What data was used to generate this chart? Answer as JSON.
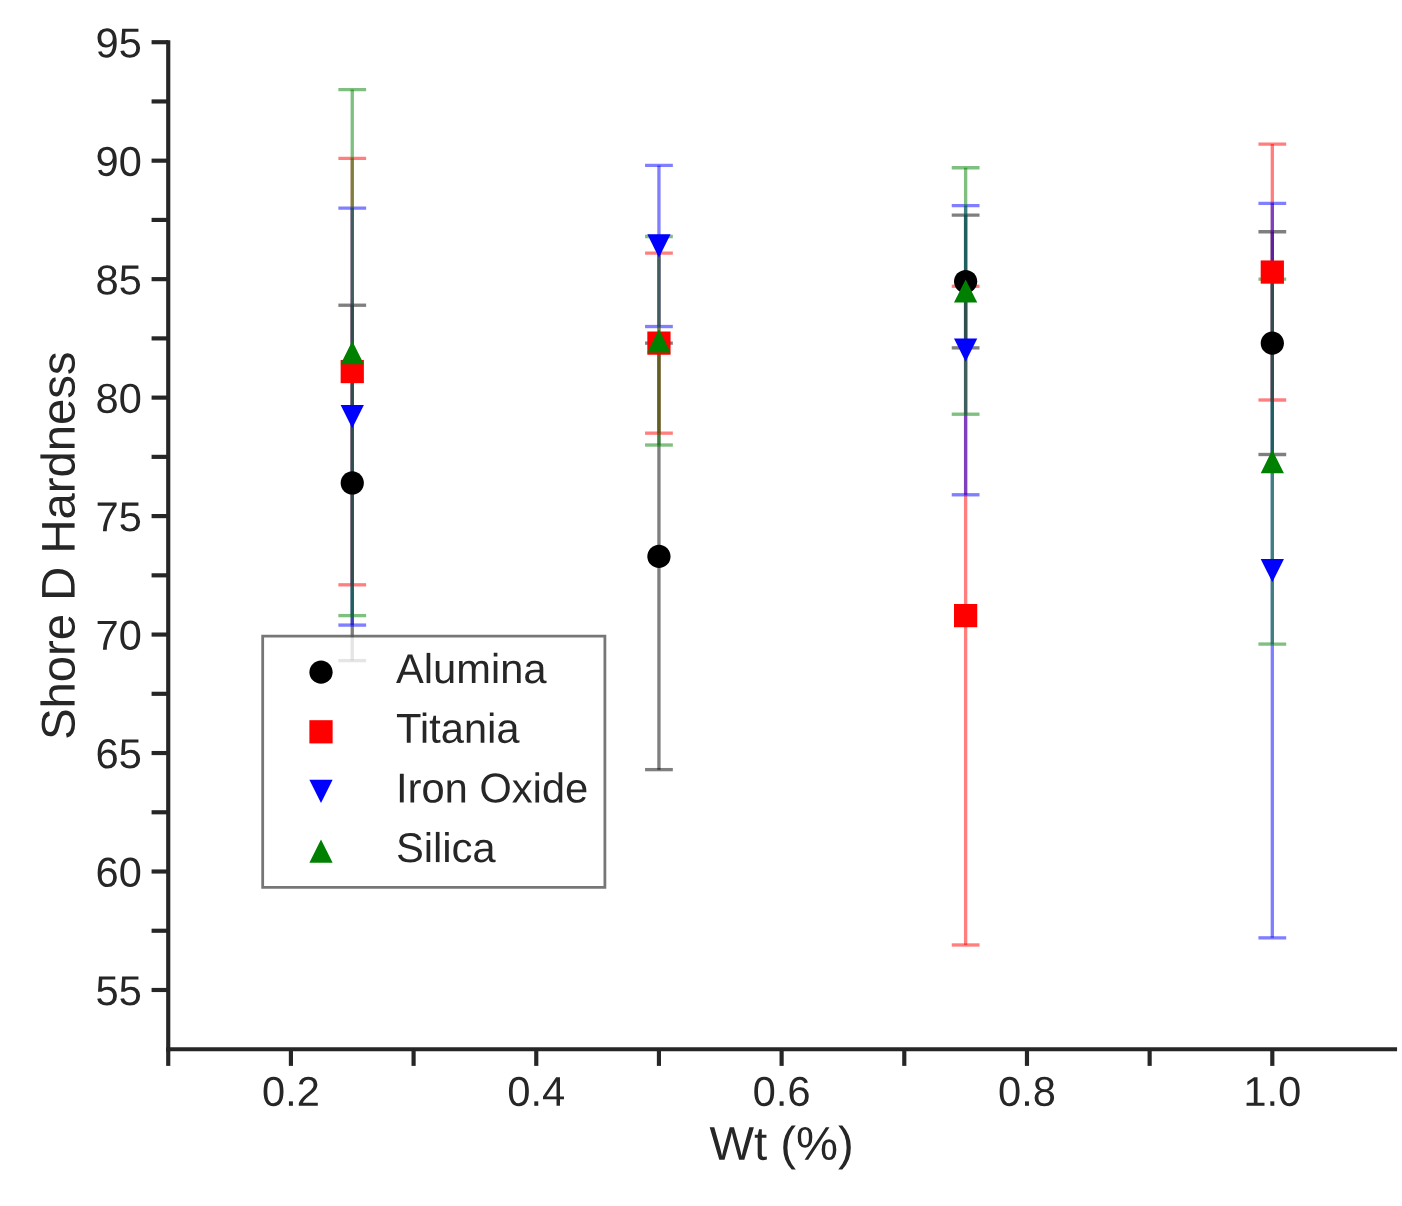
{
  "chart_data": {
    "type": "scatter",
    "xlabel": "Wt (%)",
    "ylabel": "Shore D Hardness",
    "x": [
      0.25,
      0.5,
      0.75,
      1.0
    ],
    "series": [
      {
        "name": "Alumina",
        "color": "#000000",
        "marker": "circle",
        "values": [
          76.4,
          73.3,
          84.9,
          82.3
        ],
        "errors": [
          7.5,
          9.0,
          2.8,
          4.7
        ]
      },
      {
        "name": "Titania",
        "color": "#ff0000",
        "marker": "square",
        "values": [
          81.1,
          82.3,
          70.8,
          85.3
        ],
        "errors": [
          9.0,
          3.8,
          13.9,
          5.4
        ]
      },
      {
        "name": "Iron Oxide",
        "color": "#0000ff",
        "marker": "triangle-down",
        "values": [
          79.2,
          86.4,
          82.0,
          72.7
        ],
        "errors": [
          8.8,
          3.4,
          6.1,
          15.5
        ]
      },
      {
        "name": "Silica",
        "color": "#008000",
        "marker": "triangle",
        "values": [
          81.9,
          82.4,
          84.5,
          77.3
        ],
        "errors": [
          11.1,
          4.4,
          5.2,
          7.7
        ]
      }
    ],
    "xlim": [
      0.1,
      1.1
    ],
    "xticks": [
      {
        "value": 0.1,
        "label": null
      },
      0.2,
      {
        "value": 0.3,
        "label": null
      },
      0.4,
      {
        "value": 0.5,
        "label": null
      },
      0.6,
      {
        "value": 0.7,
        "label": null
      },
      0.8,
      {
        "value": 0.9,
        "label": null
      },
      {
        "value": 1.0,
        "label": "1.0"
      }
    ],
    "ylim": [
      52.5,
      95
    ],
    "yticks": [
      55,
      {
        "value": 57.5,
        "label": null
      },
      60,
      {
        "value": 62.5,
        "label": null
      },
      65,
      {
        "value": 67.5,
        "label": null
      },
      70,
      {
        "value": 72.5,
        "label": null
      },
      75,
      {
        "value": 77.5,
        "label": null
      },
      80,
      {
        "value": 82.5,
        "label": null
      },
      85,
      {
        "value": 87.5,
        "label": null
      },
      90,
      {
        "value": 92.5,
        "label": null
      },
      95
    ],
    "grid": false,
    "legend": "bottom left"
  }
}
